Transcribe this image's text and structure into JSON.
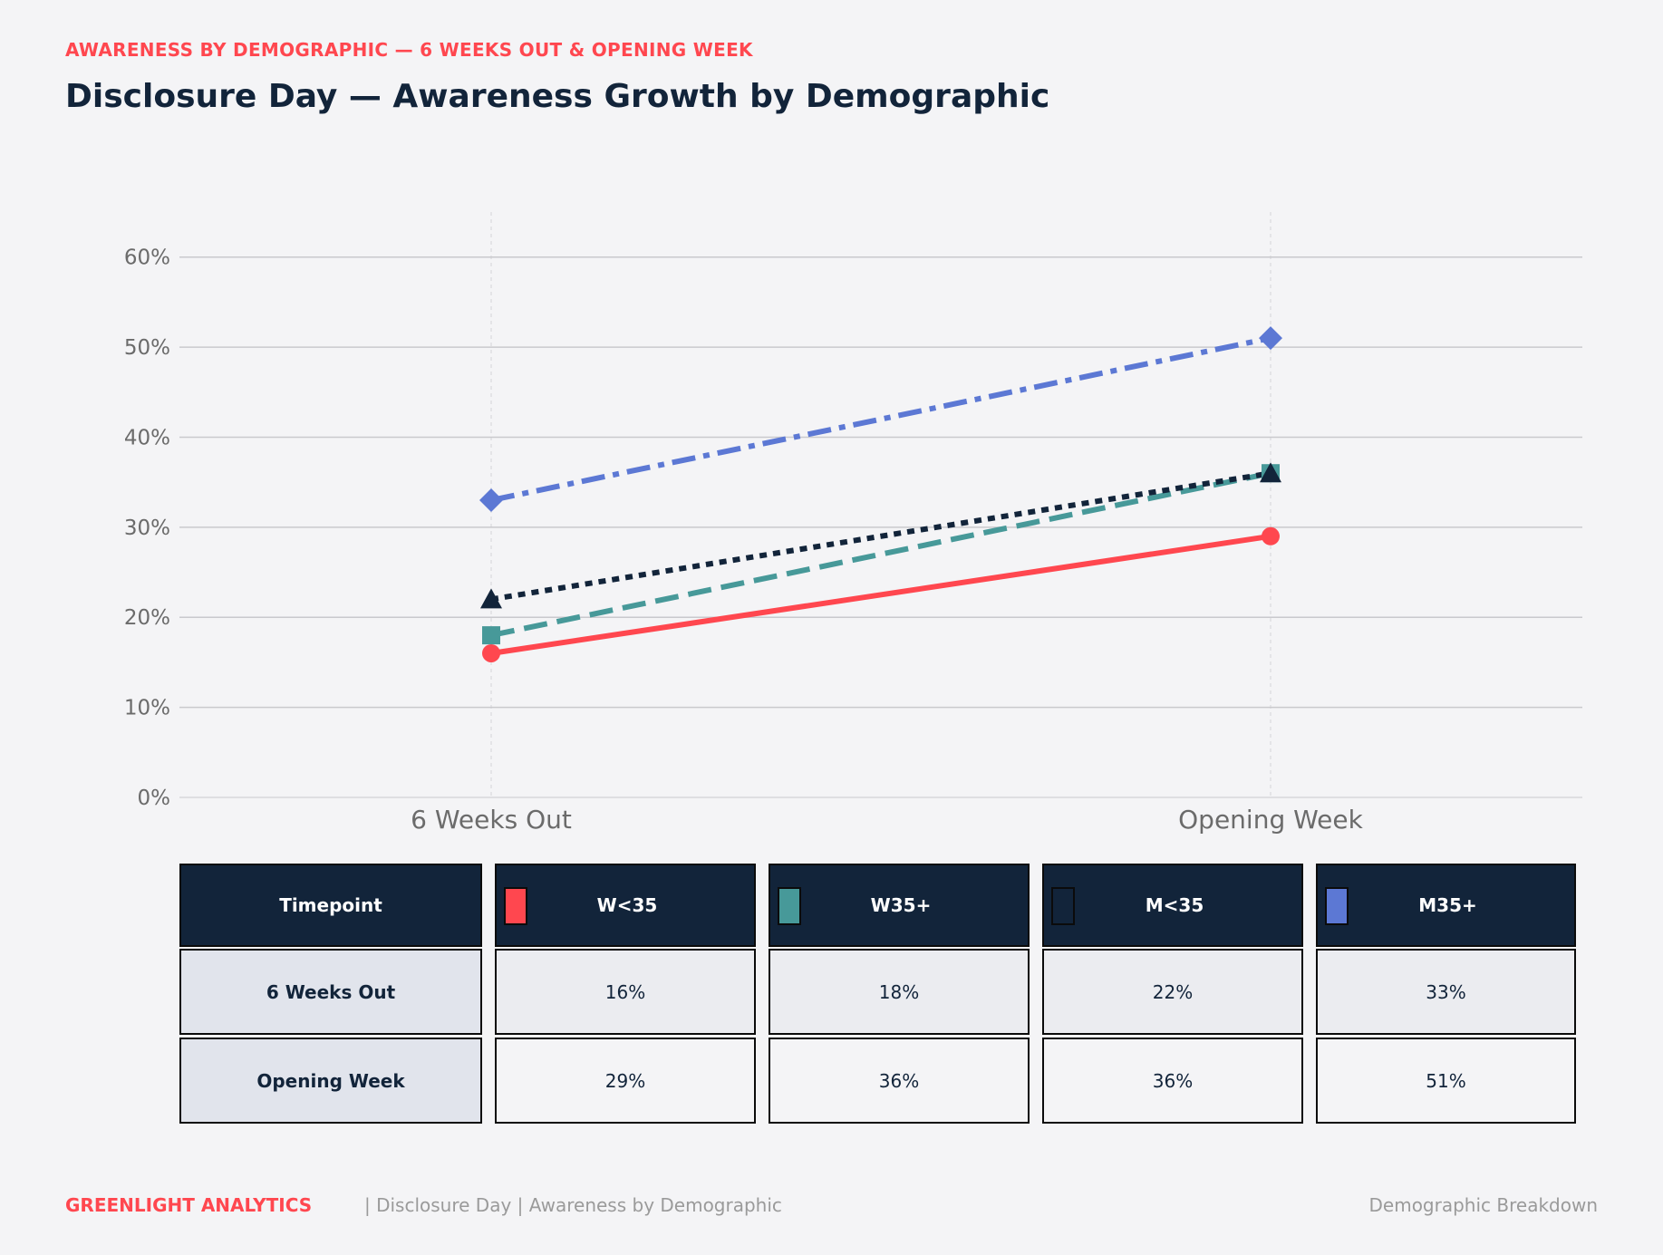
{
  "kicker": "AWARENESS BY DEMOGRAPHIC — 6 WEEKS OUT & OPENING WEEK",
  "title": "Disclosure Day — Awareness Growth by Demographic",
  "chart_data": {
    "type": "line",
    "title": "Disclosure Day — Awareness Growth by Demographic",
    "categories": [
      "6 Weeks Out",
      "Opening Week"
    ],
    "ylim": [
      0,
      65
    ],
    "yticks": [
      0,
      10,
      20,
      30,
      40,
      50,
      60
    ],
    "ytick_labels": [
      "0%",
      "10%",
      "20%",
      "30%",
      "40%",
      "50%",
      "60%"
    ],
    "grid": "horizontal",
    "series": [
      {
        "name": "W<35",
        "values": [
          16,
          29
        ],
        "color": "#ff474f",
        "marker": "circle",
        "dash": "solid"
      },
      {
        "name": "W35+",
        "values": [
          18,
          36
        ],
        "color": "#479999",
        "marker": "square",
        "dash": "dashed"
      },
      {
        "name": "M<35",
        "values": [
          22,
          36
        ],
        "color": "#12243a",
        "marker": "triangle",
        "dash": "dotted"
      },
      {
        "name": "M35+",
        "values": [
          33,
          51
        ],
        "color": "#5c78d4",
        "marker": "diamond",
        "dash": "dashdot"
      }
    ]
  },
  "table": {
    "header_label": "Timepoint",
    "rows": [
      {
        "label": "6 Weeks Out",
        "values": [
          "16%",
          "18%",
          "22%",
          "33%"
        ]
      },
      {
        "label": "Opening Week",
        "values": [
          "29%",
          "36%",
          "36%",
          "51%"
        ]
      }
    ]
  },
  "footer": {
    "brand": "GREENLIGHT ANALYTICS",
    "crumbs": "|  Disclosure Day  |  Awareness by Demographic",
    "right": "Demographic Breakdown"
  }
}
